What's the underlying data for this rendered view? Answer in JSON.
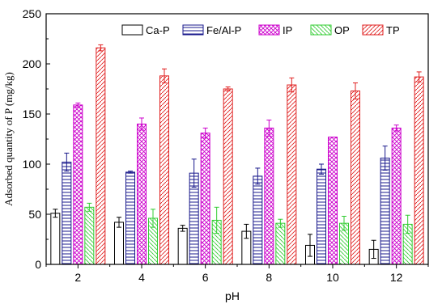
{
  "chart_data": {
    "type": "bar",
    "title": "",
    "xlabel": "pH",
    "ylabel": "Adsorbed quantity of P (mg/kg)",
    "categories": [
      "2",
      "4",
      "6",
      "8",
      "10",
      "12"
    ],
    "ylim": [
      0,
      250
    ],
    "yticks": [
      0,
      50,
      100,
      150,
      200,
      250
    ],
    "legend_position": "top-right",
    "series": [
      {
        "name": "Ca-P",
        "color": "#000000",
        "pattern": "none",
        "values": [
          51,
          42,
          36,
          33,
          19,
          15
        ],
        "errors": [
          4,
          5,
          3,
          7,
          11,
          9
        ]
      },
      {
        "name": "Fe/Al-P",
        "color": "#1a1a8c",
        "pattern": "horizontal-lines",
        "values": [
          102,
          92,
          91,
          88,
          95,
          106
        ],
        "errors": [
          9,
          1,
          14,
          8,
          5,
          12
        ]
      },
      {
        "name": "IP",
        "color": "#cc00cc",
        "pattern": "crosshatch",
        "values": [
          159,
          140,
          131,
          136,
          127,
          136
        ],
        "errors": [
          2,
          6,
          5,
          8,
          0,
          3
        ]
      },
      {
        "name": "OP",
        "color": "#33cc33",
        "pattern": "back-diagonal",
        "values": [
          57,
          46,
          44,
          41,
          41,
          40
        ],
        "errors": [
          4,
          9,
          13,
          4,
          7,
          9
        ]
      },
      {
        "name": "TP",
        "color": "#e02020",
        "pattern": "diagonal",
        "values": [
          216,
          188,
          175,
          179,
          173,
          187
        ],
        "errors": [
          3,
          7,
          2,
          7,
          8,
          5
        ]
      }
    ]
  }
}
